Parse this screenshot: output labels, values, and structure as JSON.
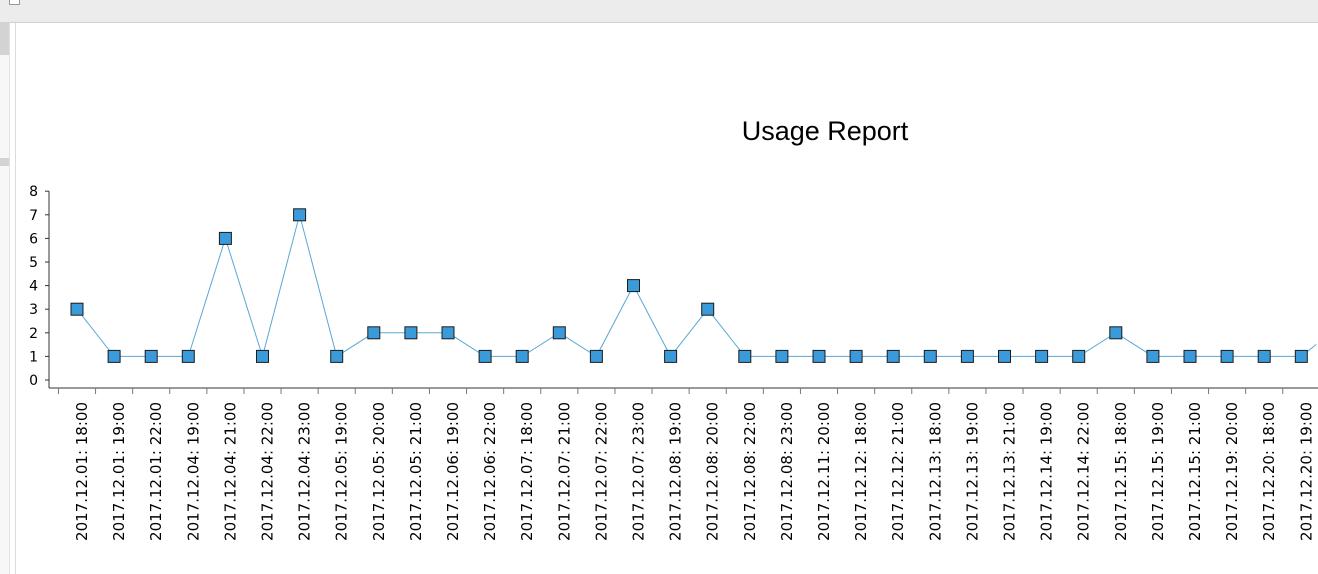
{
  "chart_data": {
    "type": "line",
    "title": "Usage Report",
    "xlabel": "",
    "ylabel": "",
    "ylim": [
      0,
      8
    ],
    "yticks": [
      "0",
      "1",
      "2",
      "3",
      "4",
      "5",
      "6",
      "7",
      "8"
    ],
    "grid": false,
    "legend": "none",
    "line_color": "#5aa7d6",
    "marker_fill": "#3b9ad9",
    "marker_stroke": "#1c1c1c",
    "categories": [
      "2017.12.01: 18:00",
      "2017.12.01: 19:00",
      "2017.12.01: 22:00",
      "2017.12.04: 19:00",
      "2017.12.04: 21:00",
      "2017.12.04: 22:00",
      "2017.12.04: 23:00",
      "2017.12.05: 19:00",
      "2017.12.05: 20:00",
      "2017.12.05: 21:00",
      "2017.12.06: 19:00",
      "2017.12.06: 22:00",
      "2017.12.07: 18:00",
      "2017.12.07: 21:00",
      "2017.12.07: 22:00",
      "2017.12.07: 23:00",
      "2017.12.08: 19:00",
      "2017.12.08: 20:00",
      "2017.12.08: 22:00",
      "2017.12.08: 23:00",
      "2017.12.11: 20:00",
      "2017.12.12: 18:00",
      "2017.12.12: 21:00",
      "2017.12.13: 18:00",
      "2017.12.13: 19:00",
      "2017.12.13: 21:00",
      "2017.12.14: 19:00",
      "2017.12.14: 22:00",
      "2017.12.15: 18:00",
      "2017.12.15: 19:00",
      "2017.12.15: 21:00",
      "2017.12.19: 20:00",
      "2017.12.20: 18:00",
      "2017.12.20: 19:00"
    ],
    "values": [
      3,
      1,
      1,
      1,
      6,
      1,
      7,
      1,
      2,
      2,
      2,
      1,
      1,
      2,
      1,
      4,
      1,
      3,
      1,
      1,
      1,
      1,
      1,
      1,
      1,
      1,
      1,
      1,
      2,
      1,
      1,
      1,
      1,
      1
    ]
  }
}
